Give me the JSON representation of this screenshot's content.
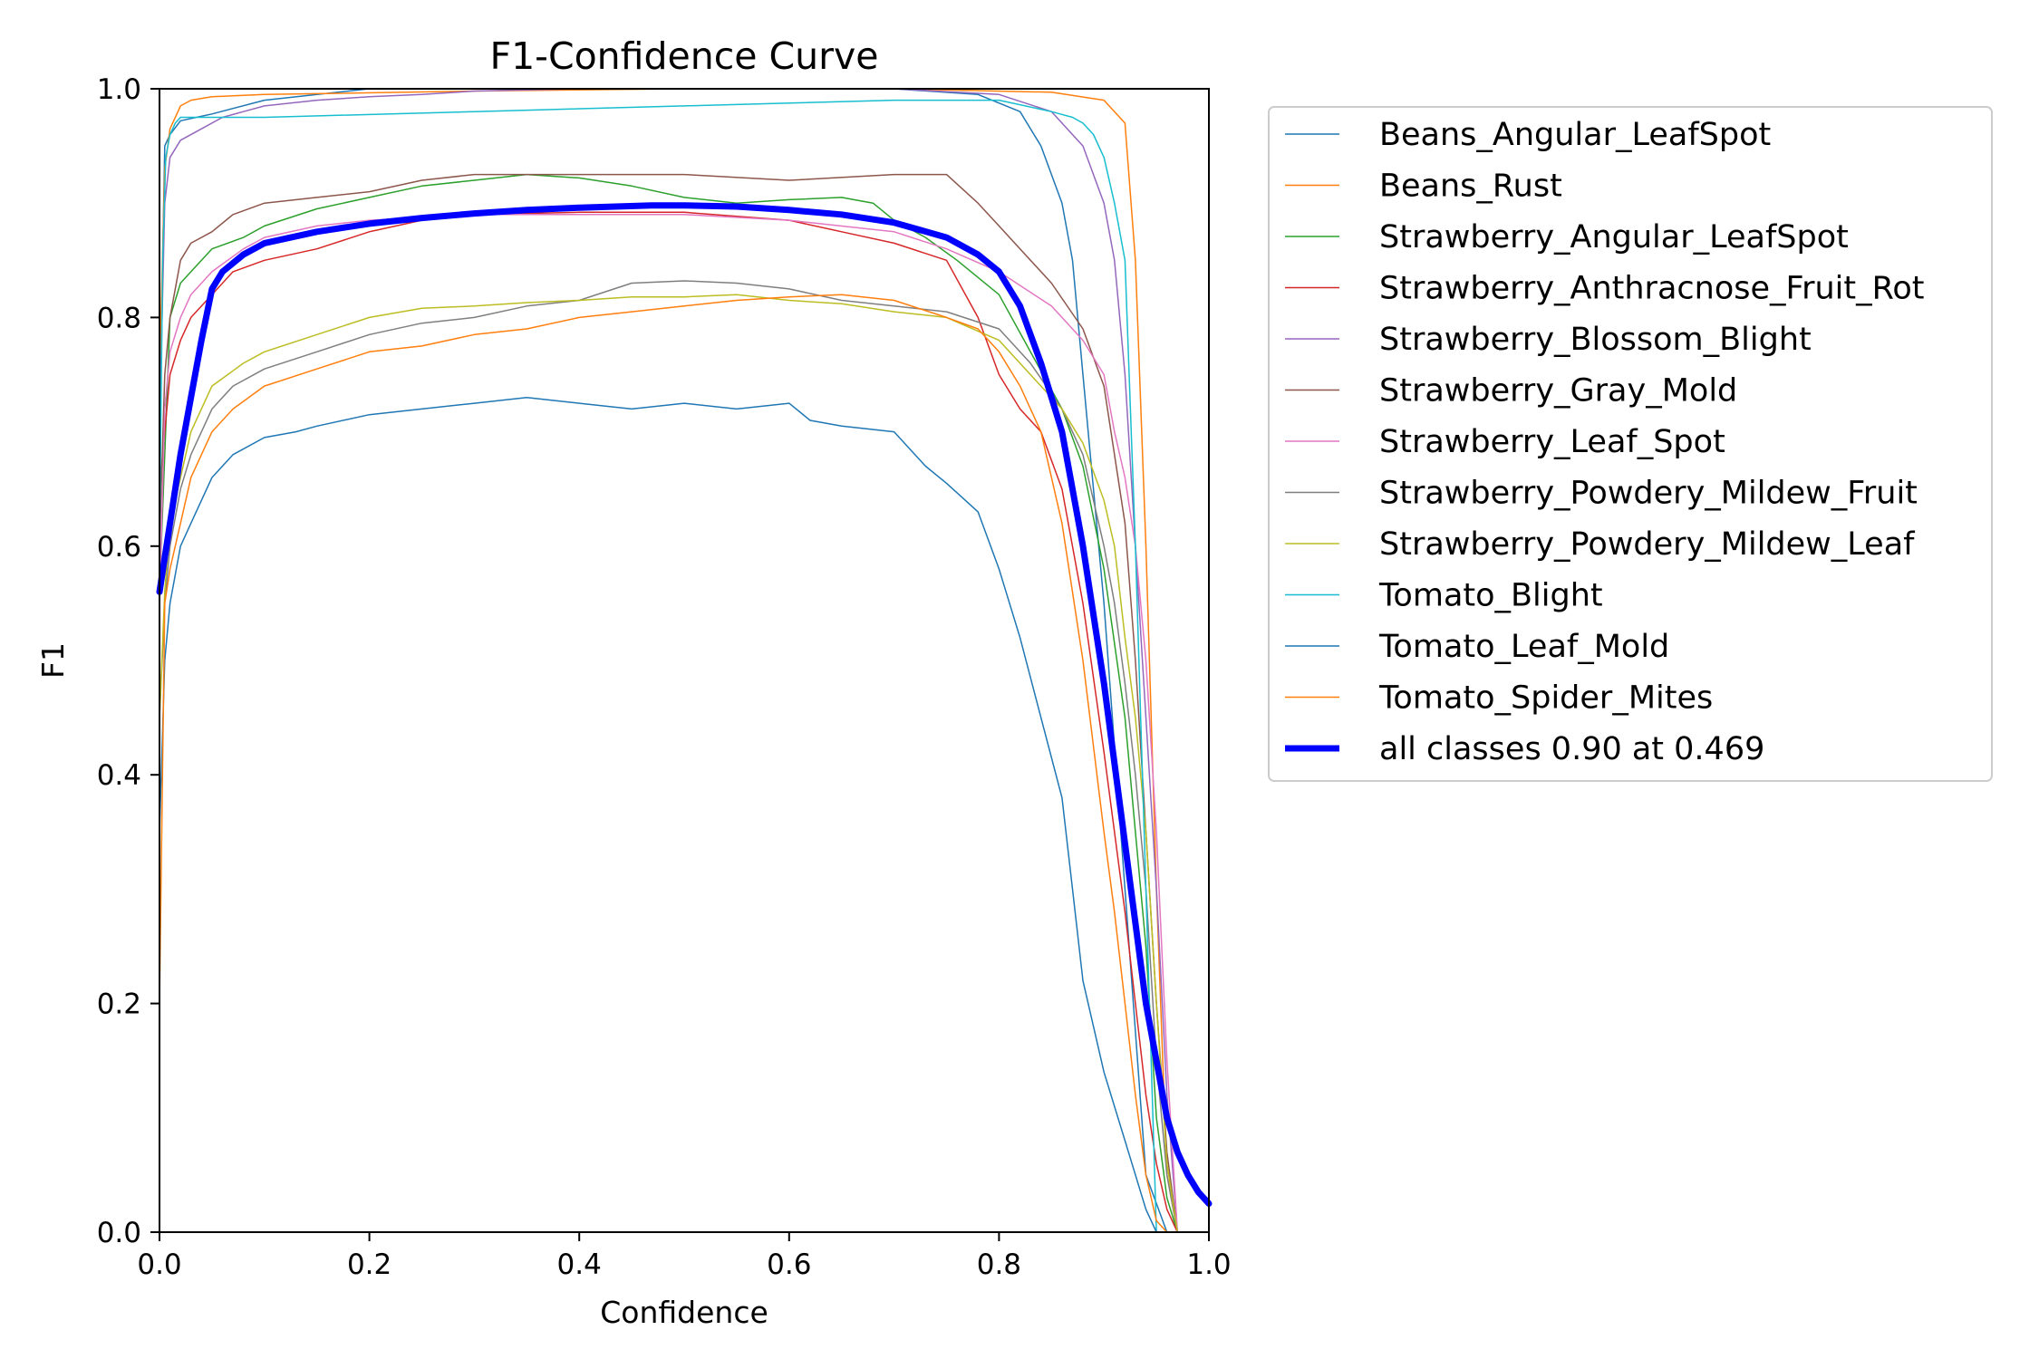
{
  "chart_data": {
    "type": "line",
    "title": "F1-Confidence Curve",
    "xlabel": "Confidence",
    "ylabel": "F1",
    "xlim": [
      0.0,
      1.0
    ],
    "ylim": [
      0.0,
      1.0
    ],
    "xticks": [
      "0.0",
      "0.2",
      "0.4",
      "0.6",
      "0.8",
      "1.0"
    ],
    "yticks": [
      "0.0",
      "0.2",
      "0.4",
      "0.6",
      "0.8",
      "1.0"
    ],
    "grid": false,
    "legend_position": "outside-right-top",
    "series": [
      {
        "name": "Beans_Angular_LeafSpot",
        "color": "#1f77b4",
        "width": 1.5,
        "x": [
          0.0,
          0.005,
          0.01,
          0.02,
          0.05,
          0.1,
          0.2,
          0.3,
          0.4,
          0.5,
          0.6,
          0.7,
          0.78,
          0.82,
          0.84,
          0.86,
          0.87,
          0.88,
          0.9,
          0.92,
          0.94,
          0.96
        ],
        "y": [
          0.7,
          0.95,
          0.96,
          0.972,
          0.978,
          0.99,
          1.0,
          1.0,
          1.0,
          1.0,
          1.0,
          1.0,
          0.995,
          0.98,
          0.95,
          0.9,
          0.85,
          0.75,
          0.55,
          0.3,
          0.05,
          0.0
        ]
      },
      {
        "name": "Beans_Rust",
        "color": "#ff7f0e",
        "width": 1.5,
        "x": [
          0.0,
          0.005,
          0.01,
          0.02,
          0.03,
          0.05,
          0.1,
          0.3,
          0.5,
          0.7,
          0.85,
          0.9,
          0.92,
          0.93,
          0.94,
          0.95,
          0.96,
          0.97
        ],
        "y": [
          0.75,
          0.93,
          0.965,
          0.985,
          0.99,
          0.993,
          0.995,
          0.998,
          1.0,
          1.0,
          0.997,
          0.99,
          0.97,
          0.85,
          0.6,
          0.3,
          0.05,
          0.0
        ]
      },
      {
        "name": "Strawberry_Angular_LeafSpot",
        "color": "#2ca02c",
        "width": 1.5,
        "x": [
          0.0,
          0.01,
          0.02,
          0.03,
          0.05,
          0.08,
          0.1,
          0.15,
          0.2,
          0.25,
          0.3,
          0.35,
          0.4,
          0.45,
          0.5,
          0.55,
          0.6,
          0.65,
          0.68,
          0.7,
          0.73,
          0.76,
          0.8,
          0.83,
          0.86,
          0.88,
          0.9,
          0.92,
          0.93,
          0.94,
          0.95,
          0.96,
          0.97
        ],
        "y": [
          0.56,
          0.8,
          0.83,
          0.84,
          0.86,
          0.87,
          0.88,
          0.895,
          0.905,
          0.915,
          0.92,
          0.925,
          0.922,
          0.915,
          0.905,
          0.9,
          0.903,
          0.905,
          0.9,
          0.885,
          0.87,
          0.85,
          0.82,
          0.77,
          0.72,
          0.67,
          0.58,
          0.45,
          0.35,
          0.25,
          0.1,
          0.03,
          0.0
        ]
      },
      {
        "name": "Strawberry_Anthracnose_Fruit_Rot",
        "color": "#d62728",
        "width": 1.5,
        "x": [
          0.0,
          0.01,
          0.02,
          0.03,
          0.05,
          0.07,
          0.1,
          0.15,
          0.2,
          0.25,
          0.3,
          0.4,
          0.5,
          0.6,
          0.65,
          0.7,
          0.75,
          0.78,
          0.8,
          0.82,
          0.84,
          0.86,
          0.88,
          0.9,
          0.91,
          0.92,
          0.93,
          0.94,
          0.95,
          0.96,
          0.97
        ],
        "y": [
          0.65,
          0.75,
          0.78,
          0.8,
          0.82,
          0.84,
          0.85,
          0.86,
          0.875,
          0.885,
          0.89,
          0.892,
          0.892,
          0.885,
          0.875,
          0.865,
          0.85,
          0.8,
          0.75,
          0.72,
          0.7,
          0.65,
          0.55,
          0.42,
          0.35,
          0.28,
          0.2,
          0.12,
          0.06,
          0.02,
          0.0
        ]
      },
      {
        "name": "Strawberry_Blossom_Blight",
        "color": "#9467bd",
        "width": 1.5,
        "x": [
          0.0,
          0.005,
          0.01,
          0.02,
          0.04,
          0.06,
          0.08,
          0.1,
          0.15,
          0.2,
          0.25,
          0.3,
          0.4,
          0.5,
          0.6,
          0.7,
          0.8,
          0.85,
          0.88,
          0.9,
          0.91,
          0.92,
          0.93,
          0.94,
          0.95,
          0.96,
          0.97
        ],
        "y": [
          0.7,
          0.9,
          0.94,
          0.955,
          0.965,
          0.975,
          0.98,
          0.985,
          0.99,
          0.993,
          0.995,
          0.998,
          1.0,
          1.0,
          1.0,
          1.0,
          0.995,
          0.98,
          0.95,
          0.9,
          0.85,
          0.75,
          0.6,
          0.45,
          0.3,
          0.12,
          0.0
        ]
      },
      {
        "name": "Strawberry_Gray_Mold",
        "color": "#8c564b",
        "width": 1.5,
        "x": [
          0.0,
          0.005,
          0.01,
          0.02,
          0.03,
          0.05,
          0.07,
          0.1,
          0.15,
          0.2,
          0.25,
          0.3,
          0.4,
          0.5,
          0.6,
          0.7,
          0.75,
          0.78,
          0.8,
          0.82,
          0.85,
          0.88,
          0.9,
          0.91,
          0.92,
          0.93,
          0.94,
          0.95,
          0.96,
          0.97
        ],
        "y": [
          0.6,
          0.75,
          0.8,
          0.85,
          0.865,
          0.875,
          0.89,
          0.9,
          0.905,
          0.91,
          0.92,
          0.925,
          0.925,
          0.925,
          0.92,
          0.925,
          0.925,
          0.9,
          0.88,
          0.86,
          0.83,
          0.79,
          0.74,
          0.68,
          0.62,
          0.5,
          0.35,
          0.2,
          0.07,
          0.0
        ]
      },
      {
        "name": "Strawberry_Leaf_Spot",
        "color": "#e377c2",
        "width": 1.5,
        "x": [
          0.0,
          0.005,
          0.01,
          0.02,
          0.03,
          0.05,
          0.08,
          0.1,
          0.15,
          0.2,
          0.3,
          0.4,
          0.5,
          0.6,
          0.7,
          0.75,
          0.8,
          0.85,
          0.88,
          0.9,
          0.91,
          0.92,
          0.93,
          0.94,
          0.95,
          0.96,
          0.97
        ],
        "y": [
          0.55,
          0.72,
          0.77,
          0.8,
          0.82,
          0.84,
          0.86,
          0.87,
          0.88,
          0.885,
          0.89,
          0.89,
          0.89,
          0.885,
          0.875,
          0.86,
          0.84,
          0.81,
          0.78,
          0.75,
          0.7,
          0.66,
          0.6,
          0.5,
          0.35,
          0.15,
          0.0
        ]
      },
      {
        "name": "Strawberry_Powdery_Mildew_Fruit",
        "color": "#7f7f7f",
        "width": 1.5,
        "x": [
          0.0,
          0.005,
          0.01,
          0.02,
          0.03,
          0.05,
          0.07,
          0.1,
          0.15,
          0.2,
          0.25,
          0.3,
          0.35,
          0.4,
          0.45,
          0.5,
          0.55,
          0.6,
          0.65,
          0.7,
          0.75,
          0.8,
          0.83,
          0.86,
          0.88,
          0.9,
          0.91,
          0.92,
          0.93,
          0.94,
          0.95,
          0.96,
          0.97
        ],
        "y": [
          0.45,
          0.55,
          0.6,
          0.65,
          0.68,
          0.72,
          0.74,
          0.755,
          0.77,
          0.785,
          0.795,
          0.8,
          0.81,
          0.815,
          0.83,
          0.832,
          0.83,
          0.825,
          0.815,
          0.81,
          0.805,
          0.79,
          0.76,
          0.72,
          0.68,
          0.6,
          0.55,
          0.48,
          0.4,
          0.3,
          0.15,
          0.05,
          0.0
        ]
      },
      {
        "name": "Strawberry_Powdery_Mildew_Leaf",
        "color": "#bcbd22",
        "width": 1.5,
        "x": [
          0.0,
          0.005,
          0.01,
          0.02,
          0.03,
          0.05,
          0.08,
          0.1,
          0.15,
          0.2,
          0.25,
          0.3,
          0.35,
          0.4,
          0.45,
          0.5,
          0.55,
          0.6,
          0.65,
          0.7,
          0.75,
          0.8,
          0.83,
          0.86,
          0.88,
          0.9,
          0.91,
          0.92,
          0.93,
          0.94,
          0.95,
          0.96,
          0.97
        ],
        "y": [
          0.45,
          0.56,
          0.62,
          0.66,
          0.7,
          0.74,
          0.76,
          0.77,
          0.785,
          0.8,
          0.808,
          0.81,
          0.813,
          0.815,
          0.818,
          0.818,
          0.82,
          0.815,
          0.812,
          0.805,
          0.8,
          0.78,
          0.75,
          0.72,
          0.69,
          0.64,
          0.6,
          0.52,
          0.45,
          0.35,
          0.2,
          0.06,
          0.0
        ]
      },
      {
        "name": "Tomato_Blight",
        "color": "#17becf",
        "width": 1.5,
        "x": [
          0.0,
          0.003,
          0.006,
          0.01,
          0.015,
          0.02,
          0.05,
          0.1,
          0.3,
          0.5,
          0.7,
          0.8,
          0.85,
          0.87,
          0.88,
          0.89,
          0.9,
          0.91,
          0.92,
          0.93,
          0.94,
          0.95
        ],
        "y": [
          0.6,
          0.85,
          0.94,
          0.96,
          0.97,
          0.975,
          0.975,
          0.975,
          0.98,
          0.985,
          0.99,
          0.99,
          0.98,
          0.975,
          0.97,
          0.96,
          0.94,
          0.9,
          0.85,
          0.6,
          0.3,
          0.0
        ]
      },
      {
        "name": "Tomato_Leaf_Mold",
        "color": "#1f77b4",
        "width": 1.5,
        "x": [
          0.0,
          0.005,
          0.01,
          0.02,
          0.03,
          0.05,
          0.07,
          0.1,
          0.13,
          0.15,
          0.2,
          0.25,
          0.3,
          0.35,
          0.4,
          0.45,
          0.5,
          0.55,
          0.6,
          0.62,
          0.65,
          0.7,
          0.73,
          0.75,
          0.78,
          0.8,
          0.82,
          0.84,
          0.86,
          0.87,
          0.88,
          0.9,
          0.92,
          0.94,
          0.95,
          0.96
        ],
        "y": [
          0.35,
          0.5,
          0.55,
          0.6,
          0.62,
          0.66,
          0.68,
          0.695,
          0.7,
          0.705,
          0.715,
          0.72,
          0.725,
          0.73,
          0.725,
          0.72,
          0.725,
          0.72,
          0.725,
          0.71,
          0.705,
          0.7,
          0.67,
          0.655,
          0.63,
          0.58,
          0.52,
          0.45,
          0.38,
          0.3,
          0.22,
          0.14,
          0.08,
          0.02,
          0.0,
          0.0
        ]
      },
      {
        "name": "Tomato_Spider_Mites",
        "color": "#ff7f0e",
        "width": 1.5,
        "x": [
          0.0,
          0.005,
          0.01,
          0.02,
          0.03,
          0.05,
          0.07,
          0.1,
          0.15,
          0.2,
          0.25,
          0.3,
          0.35,
          0.4,
          0.45,
          0.5,
          0.55,
          0.6,
          0.65,
          0.7,
          0.75,
          0.78,
          0.8,
          0.82,
          0.84,
          0.86,
          0.88,
          0.9,
          0.91,
          0.92,
          0.93,
          0.94,
          0.95,
          0.96
        ],
        "y": [
          0.2,
          0.55,
          0.58,
          0.62,
          0.66,
          0.7,
          0.72,
          0.74,
          0.755,
          0.77,
          0.775,
          0.785,
          0.79,
          0.8,
          0.805,
          0.81,
          0.815,
          0.818,
          0.82,
          0.815,
          0.8,
          0.79,
          0.77,
          0.74,
          0.7,
          0.62,
          0.5,
          0.35,
          0.28,
          0.2,
          0.12,
          0.05,
          0.01,
          0.0
        ]
      },
      {
        "name": "all classes 0.90 at 0.469",
        "color": "#0000ff",
        "width": 7,
        "x": [
          0.0,
          0.01,
          0.02,
          0.03,
          0.04,
          0.05,
          0.06,
          0.08,
          0.1,
          0.15,
          0.2,
          0.25,
          0.3,
          0.35,
          0.4,
          0.469,
          0.5,
          0.55,
          0.6,
          0.65,
          0.7,
          0.75,
          0.78,
          0.8,
          0.82,
          0.84,
          0.86,
          0.88,
          0.9,
          0.92,
          0.94,
          0.96,
          0.97,
          0.98,
          0.99,
          1.0
        ],
        "y": [
          0.56,
          0.62,
          0.68,
          0.73,
          0.78,
          0.825,
          0.84,
          0.855,
          0.865,
          0.875,
          0.882,
          0.887,
          0.891,
          0.894,
          0.896,
          0.898,
          0.898,
          0.897,
          0.894,
          0.89,
          0.883,
          0.87,
          0.855,
          0.84,
          0.81,
          0.76,
          0.7,
          0.6,
          0.48,
          0.34,
          0.2,
          0.1,
          0.07,
          0.05,
          0.035,
          0.025
        ]
      }
    ]
  }
}
